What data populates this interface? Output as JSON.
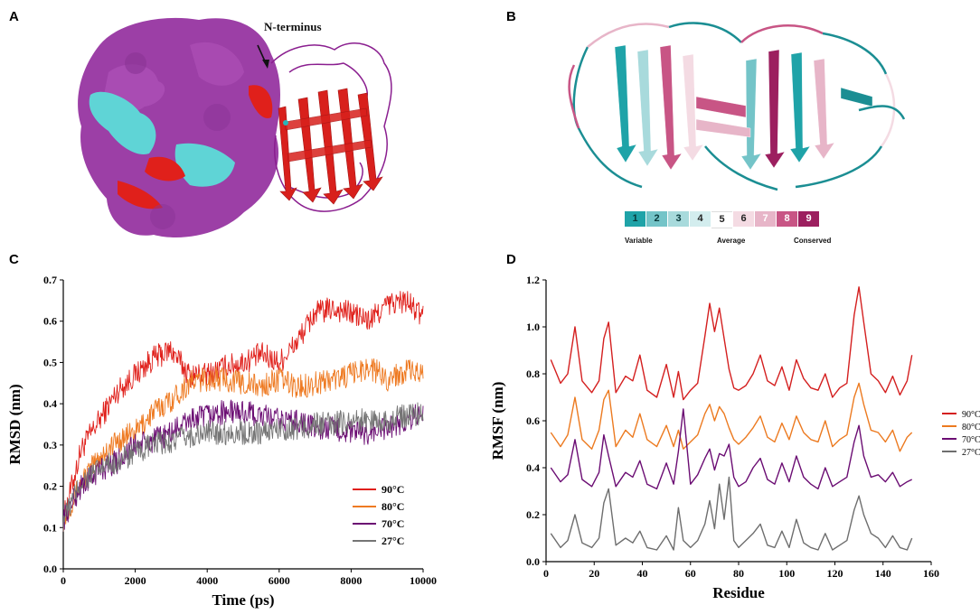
{
  "panels": {
    "a": "A",
    "b": "B",
    "c": "C",
    "d": "D"
  },
  "panel_a": {
    "annotation": "N-terminus"
  },
  "panel_b": {
    "scale": {
      "cells": [
        "1",
        "2",
        "3",
        "4",
        "5",
        "6",
        "7",
        "8",
        "9"
      ],
      "colors": [
        "#1fa3a8",
        "#74c4c8",
        "#a8dadc",
        "#d3edee",
        "#ffffff",
        "#f4dbe3",
        "#e7b5c8",
        "#c85585",
        "#9c1f5f"
      ],
      "low_label": "Variable",
      "mid_label": "Average",
      "high_label": "Conserved"
    }
  },
  "chart_data": [
    {
      "type": "line",
      "panel": "C",
      "xlabel": "Time (ps)",
      "ylabel": "RMSD (nm)",
      "xlim": [
        0,
        10000
      ],
      "ylim": [
        0,
        0.7
      ],
      "xticks": [
        "0",
        "2000",
        "4000",
        "6000",
        "8000",
        "10000"
      ],
      "yticks": [
        "0.0",
        "0.1",
        "0.2",
        "0.3",
        "0.4",
        "0.5",
        "0.6",
        "0.7"
      ],
      "legend_position": "lower-right",
      "x": [
        0,
        500,
        1000,
        1500,
        2000,
        2500,
        3000,
        3500,
        4000,
        4500,
        5000,
        5500,
        6000,
        6500,
        7000,
        7500,
        8000,
        8500,
        9000,
        9500,
        10000
      ],
      "series": [
        {
          "name": "90°C",
          "color": "#e0201b",
          "values": [
            0.12,
            0.29,
            0.36,
            0.43,
            0.47,
            0.51,
            0.53,
            0.47,
            0.47,
            0.49,
            0.5,
            0.52,
            0.5,
            0.55,
            0.62,
            0.63,
            0.62,
            0.6,
            0.64,
            0.65,
            0.61
          ]
        },
        {
          "name": "80°C",
          "color": "#ee7a22",
          "values": [
            0.12,
            0.21,
            0.27,
            0.31,
            0.33,
            0.38,
            0.41,
            0.45,
            0.46,
            0.46,
            0.45,
            0.44,
            0.46,
            0.44,
            0.45,
            0.46,
            0.47,
            0.49,
            0.46,
            0.48,
            0.47
          ]
        },
        {
          "name": "70°C",
          "color": "#6b0d73",
          "values": [
            0.12,
            0.2,
            0.24,
            0.26,
            0.3,
            0.31,
            0.33,
            0.36,
            0.37,
            0.38,
            0.38,
            0.37,
            0.36,
            0.36,
            0.34,
            0.34,
            0.33,
            0.33,
            0.34,
            0.36,
            0.38
          ]
        },
        {
          "name": "27°C",
          "color": "#757575",
          "values": [
            0.12,
            0.21,
            0.24,
            0.26,
            0.28,
            0.3,
            0.31,
            0.32,
            0.33,
            0.33,
            0.33,
            0.33,
            0.34,
            0.34,
            0.35,
            0.35,
            0.36,
            0.36,
            0.36,
            0.37,
            0.38
          ]
        }
      ]
    },
    {
      "type": "line",
      "panel": "D",
      "xlabel": "Residue",
      "ylabel": "RMSF (nm)",
      "xlim": [
        0,
        160
      ],
      "ylim": [
        0,
        1.2
      ],
      "xticks": [
        "0",
        "20",
        "40",
        "60",
        "80",
        "100",
        "120",
        "140",
        "160"
      ],
      "yticks": [
        "0.0",
        "0.2",
        "0.4",
        "0.6",
        "0.8",
        "1.0",
        "1.2"
      ],
      "legend_position": "right",
      "x": [
        2,
        6,
        9,
        12,
        15,
        19,
        22,
        24,
        26,
        29,
        33,
        36,
        39,
        42,
        46,
        50,
        53,
        55,
        57,
        60,
        63,
        66,
        68,
        70,
        72,
        74,
        76,
        78,
        80,
        83,
        86,
        89,
        92,
        95,
        98,
        101,
        104,
        107,
        110,
        113,
        116,
        119,
        122,
        125,
        128,
        130,
        132,
        135,
        138,
        141,
        144,
        147,
        150,
        152
      ],
      "series": [
        {
          "name": "90°C",
          "color": "#d41f1f",
          "values": [
            0.86,
            0.76,
            0.8,
            1.0,
            0.77,
            0.72,
            0.77,
            0.95,
            1.02,
            0.72,
            0.79,
            0.77,
            0.88,
            0.73,
            0.7,
            0.84,
            0.7,
            0.81,
            0.69,
            0.73,
            0.76,
            0.96,
            1.1,
            0.98,
            1.08,
            0.95,
            0.82,
            0.74,
            0.73,
            0.75,
            0.8,
            0.88,
            0.77,
            0.75,
            0.83,
            0.73,
            0.86,
            0.78,
            0.74,
            0.73,
            0.8,
            0.7,
            0.74,
            0.76,
            1.05,
            1.17,
            1.02,
            0.8,
            0.77,
            0.72,
            0.79,
            0.71,
            0.77,
            0.88
          ]
        },
        {
          "name": "80°C",
          "color": "#ec7a20",
          "values": [
            0.55,
            0.49,
            0.54,
            0.7,
            0.52,
            0.48,
            0.56,
            0.69,
            0.73,
            0.49,
            0.56,
            0.53,
            0.63,
            0.52,
            0.49,
            0.58,
            0.49,
            0.56,
            0.48,
            0.51,
            0.54,
            0.63,
            0.67,
            0.6,
            0.66,
            0.63,
            0.57,
            0.52,
            0.5,
            0.53,
            0.57,
            0.62,
            0.53,
            0.51,
            0.59,
            0.52,
            0.62,
            0.55,
            0.52,
            0.51,
            0.6,
            0.49,
            0.52,
            0.54,
            0.7,
            0.76,
            0.67,
            0.56,
            0.55,
            0.51,
            0.56,
            0.47,
            0.53,
            0.55
          ]
        },
        {
          "name": "70°C",
          "color": "#6b0d73",
          "values": [
            0.4,
            0.34,
            0.37,
            0.52,
            0.35,
            0.32,
            0.38,
            0.54,
            0.45,
            0.32,
            0.38,
            0.36,
            0.43,
            0.33,
            0.31,
            0.42,
            0.33,
            0.47,
            0.65,
            0.33,
            0.37,
            0.44,
            0.48,
            0.39,
            0.46,
            0.45,
            0.5,
            0.36,
            0.32,
            0.34,
            0.4,
            0.44,
            0.35,
            0.33,
            0.42,
            0.34,
            0.45,
            0.36,
            0.33,
            0.31,
            0.4,
            0.32,
            0.34,
            0.36,
            0.51,
            0.58,
            0.45,
            0.36,
            0.37,
            0.34,
            0.38,
            0.32,
            0.34,
            0.35
          ]
        },
        {
          "name": "27°C",
          "color": "#6e6e6e",
          "values": [
            0.12,
            0.06,
            0.09,
            0.2,
            0.08,
            0.06,
            0.1,
            0.25,
            0.31,
            0.07,
            0.1,
            0.08,
            0.13,
            0.06,
            0.05,
            0.11,
            0.05,
            0.23,
            0.09,
            0.06,
            0.09,
            0.16,
            0.26,
            0.14,
            0.33,
            0.18,
            0.36,
            0.09,
            0.06,
            0.09,
            0.12,
            0.16,
            0.07,
            0.06,
            0.13,
            0.06,
            0.18,
            0.08,
            0.06,
            0.05,
            0.12,
            0.05,
            0.07,
            0.09,
            0.22,
            0.28,
            0.2,
            0.12,
            0.1,
            0.06,
            0.11,
            0.06,
            0.05,
            0.1
          ]
        }
      ]
    }
  ]
}
